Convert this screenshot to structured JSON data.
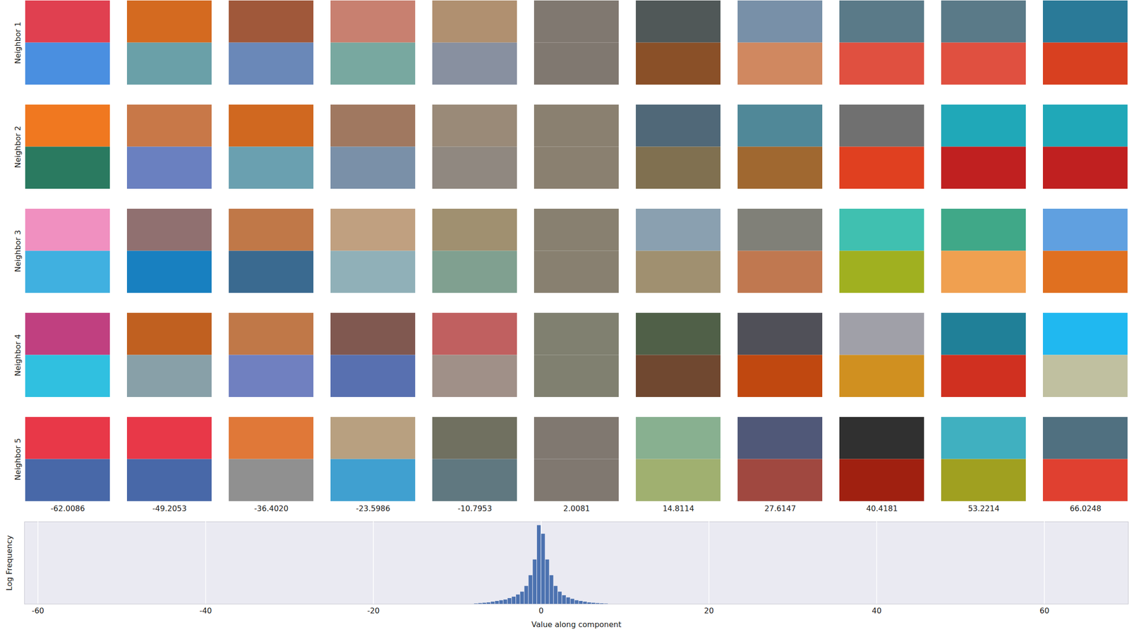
{
  "chart_data": [
    {
      "type": "image_grid",
      "row_labels": [
        "Neighbor 1",
        "Neighbor 2",
        "Neighbor 3",
        "Neighbor 4",
        "Neighbor 5"
      ],
      "column_labels": [
        {
          "value": -62.0086,
          "label": "-62.0086"
        },
        {
          "value": -49.2053,
          "label": "-49.2053"
        },
        {
          "value": -36.402,
          "label": "-36.4020"
        },
        {
          "value": -23.5986,
          "label": "-23.5986"
        },
        {
          "value": -10.7953,
          "label": "-10.7953"
        },
        {
          "value": 2.0081,
          "label": "2.0081"
        },
        {
          "value": 14.8114,
          "label": "14.8114"
        },
        {
          "value": 27.6147,
          "label": "27.6147"
        },
        {
          "value": 40.4181,
          "label": "40.4181"
        },
        {
          "value": 53.2214,
          "label": "53.2214"
        },
        {
          "value": 66.0248,
          "label": "66.0248"
        }
      ],
      "patches": [
        [
          {
            "colors": [
              "#e04050",
              "#4a8fe0"
            ]
          },
          {
            "colors": [
              "#d46a20",
              "#6aa0a8"
            ]
          },
          {
            "colors": [
              "#a0583a",
              "#6a88b8"
            ]
          },
          {
            "colors": [
              "#c88070",
              "#78a8a0"
            ]
          },
          {
            "colors": [
              "#b09070",
              "#8890a0"
            ]
          },
          {
            "colors": [
              "#807870",
              "#807870"
            ]
          },
          {
            "colors": [
              "#505858",
              "#8a5028"
            ]
          },
          {
            "colors": [
              "#7890a8",
              "#d08860"
            ]
          },
          {
            "colors": [
              "#5a7a88",
              "#e05040"
            ]
          },
          {
            "colors": [
              "#5a7a88",
              "#e05040"
            ]
          },
          {
            "colors": [
              "#2a7a98",
              "#d84020"
            ]
          }
        ],
        [
          {
            "colors": [
              "#f07820",
              "#2a7a60"
            ]
          },
          {
            "colors": [
              "#c87848",
              "#6a80c0"
            ]
          },
          {
            "colors": [
              "#d06820",
              "#6aa0b0"
            ]
          },
          {
            "colors": [
              "#a07860",
              "#7a90a8"
            ]
          },
          {
            "colors": [
              "#9a8a78",
              "#908880"
            ]
          },
          {
            "colors": [
              "#8a8070",
              "#8a8070"
            ]
          },
          {
            "colors": [
              "#506878",
              "#807050"
            ]
          },
          {
            "colors": [
              "#508898",
              "#a06830"
            ]
          },
          {
            "colors": [
              "#707070",
              "#e04020"
            ]
          },
          {
            "colors": [
              "#20a8b8",
              "#c02020"
            ]
          },
          {
            "colors": [
              "#20a8b8",
              "#c02020"
            ]
          }
        ],
        [
          {
            "colors": [
              "#f090c0",
              "#40b0e0"
            ]
          },
          {
            "colors": [
              "#907070",
              "#1880c0"
            ]
          },
          {
            "colors": [
              "#c07848",
              "#3a6a90"
            ]
          },
          {
            "colors": [
              "#c0a080",
              "#90b0b8"
            ]
          },
          {
            "colors": [
              "#a09070",
              "#80a090"
            ]
          },
          {
            "colors": [
              "#888070",
              "#888070"
            ]
          },
          {
            "colors": [
              "#8aa0b0",
              "#a09070"
            ]
          },
          {
            "colors": [
              "#808078",
              "#c07850"
            ]
          },
          {
            "colors": [
              "#40c0b0",
              "#a0b020"
            ]
          },
          {
            "colors": [
              "#40a888",
              "#f0a050"
            ]
          },
          {
            "colors": [
              "#60a0e0",
              "#e07020"
            ]
          }
        ],
        [
          {
            "colors": [
              "#c04080",
              "#30c0e0"
            ]
          },
          {
            "colors": [
              "#c06020",
              "#88a0a8"
            ]
          },
          {
            "colors": [
              "#c07848",
              "#7080c0"
            ]
          },
          {
            "colors": [
              "#805850",
              "#5870b0"
            ]
          },
          {
            "colors": [
              "#c06060",
              "#a09088"
            ]
          },
          {
            "colors": [
              "#808070",
              "#808070"
            ]
          },
          {
            "colors": [
              "#506048",
              "#704830"
            ]
          },
          {
            "colors": [
              "#505058",
              "#c04810"
            ]
          },
          {
            "colors": [
              "#a0a0a8",
              "#d09020"
            ]
          },
          {
            "colors": [
              "#208098",
              "#d03020"
            ]
          },
          {
            "colors": [
              "#20b8f0",
              "#c0c0a0"
            ]
          }
        ],
        [
          {
            "colors": [
              "#e83848",
              "#4868a8"
            ]
          },
          {
            "colors": [
              "#e83848",
              "#4868a8"
            ]
          },
          {
            "colors": [
              "#e07838",
              "#909090"
            ]
          },
          {
            "colors": [
              "#b8a080",
              "#40a0d0"
            ]
          },
          {
            "colors": [
              "#707060",
              "#607880"
            ]
          },
          {
            "colors": [
              "#807870",
              "#807870"
            ]
          },
          {
            "colors": [
              "#88b090",
              "#a0b070"
            ]
          },
          {
            "colors": [
              "#505878",
              "#a04840"
            ]
          },
          {
            "colors": [
              "#303030",
              "#a02010"
            ]
          },
          {
            "colors": [
              "#40b0c0",
              "#a0a020"
            ]
          },
          {
            "colors": [
              "#507080",
              "#e04030"
            ]
          }
        ]
      ]
    },
    {
      "type": "histogram",
      "x_label": "Value along component",
      "y_label": "Log Frequency",
      "bins": [
        -8,
        -7.5,
        -7,
        -6.5,
        -6,
        -5.5,
        -5,
        -4.5,
        -4,
        -3.5,
        -3,
        -2.5,
        -2,
        -1.5,
        -1,
        -0.5,
        0,
        0.5,
        1,
        1.5,
        2,
        2.5,
        3,
        3.5,
        4,
        4.5,
        5,
        5.5,
        6,
        6.5,
        7,
        7.5,
        8
      ],
      "values": [
        0.5,
        1,
        1.5,
        2,
        3,
        4,
        5,
        6,
        8,
        10,
        13,
        17,
        25,
        40,
        62,
        110,
        98,
        62,
        40,
        25,
        17,
        12,
        9,
        7,
        5,
        4,
        3,
        2,
        1.5,
        1,
        0.7,
        0.4
      ],
      "color": "#4c72b0",
      "xlim": [
        -61.6,
        70
      ],
      "xticks": [
        -60,
        -40,
        -20,
        0,
        20,
        40,
        60
      ],
      "ylim": [
        0,
        115
      ],
      "tick_labels": "x",
      "grid": true
    }
  ]
}
